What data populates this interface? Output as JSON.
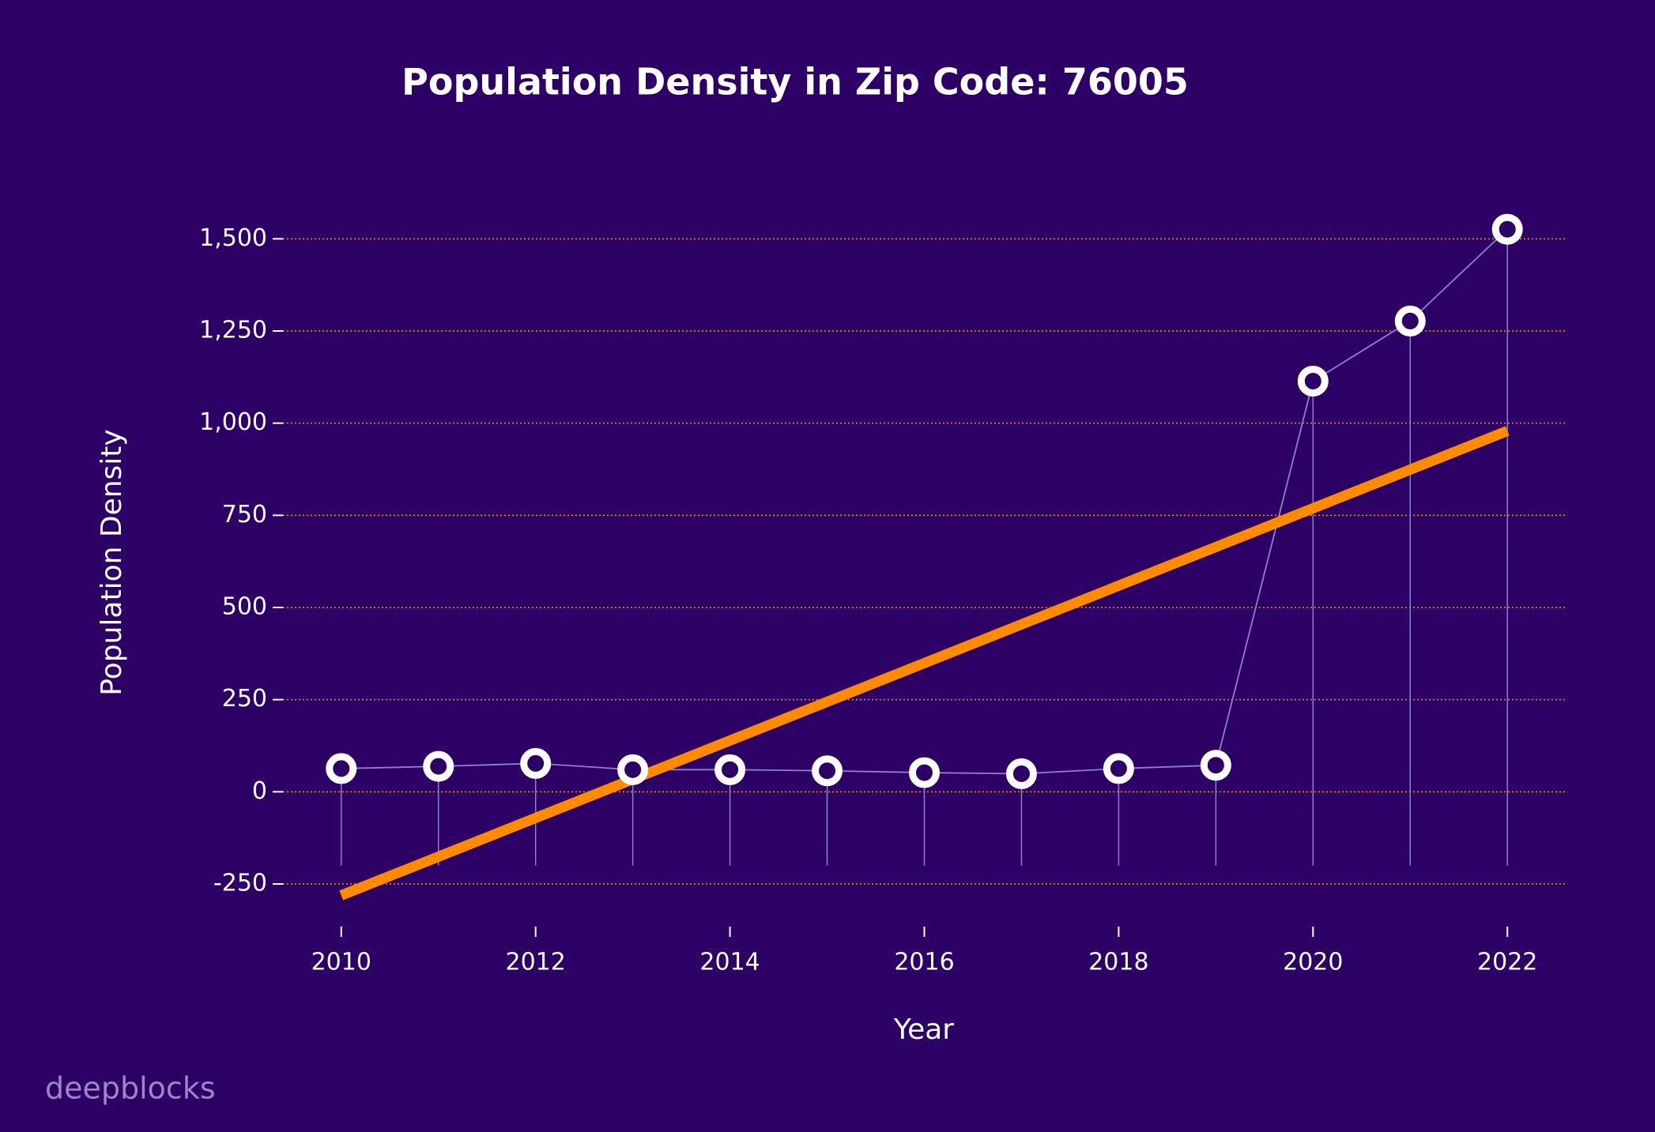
{
  "chart_data": {
    "type": "stem-line",
    "title": "Population Density in Zip Code: 76005",
    "xlabel": "Year",
    "ylabel": "Population Density",
    "watermark": "deepblocks",
    "x": [
      2010,
      2011,
      2012,
      2013,
      2014,
      2015,
      2016,
      2017,
      2018,
      2019,
      2020,
      2021,
      2022
    ],
    "values": [
      63,
      69,
      77,
      60,
      60,
      57,
      52,
      49,
      63,
      72,
      1114,
      1277,
      1526
    ],
    "color": "#ffffff",
    "line_color": "#8f7fd0",
    "stem_base": -200,
    "trend": {
      "x": [
        2010,
        2022
      ],
      "values": [
        -281,
        979
      ],
      "color": "#ff8c00"
    },
    "xlim": [
      2009.4,
      2022.6
    ],
    "ylim": [
      -340,
      1580
    ],
    "xticks": [
      2010,
      2012,
      2014,
      2016,
      2018,
      2020,
      2022
    ],
    "yticks": [
      -250,
      0,
      250,
      500,
      750,
      {
        "value": 1000,
        "label": "1,000"
      },
      {
        "value": 1250,
        "label": "1,250"
      },
      {
        "value": 1500,
        "label": "1,500"
      }
    ],
    "grid": true,
    "grid_color": "#ff8c00"
  }
}
